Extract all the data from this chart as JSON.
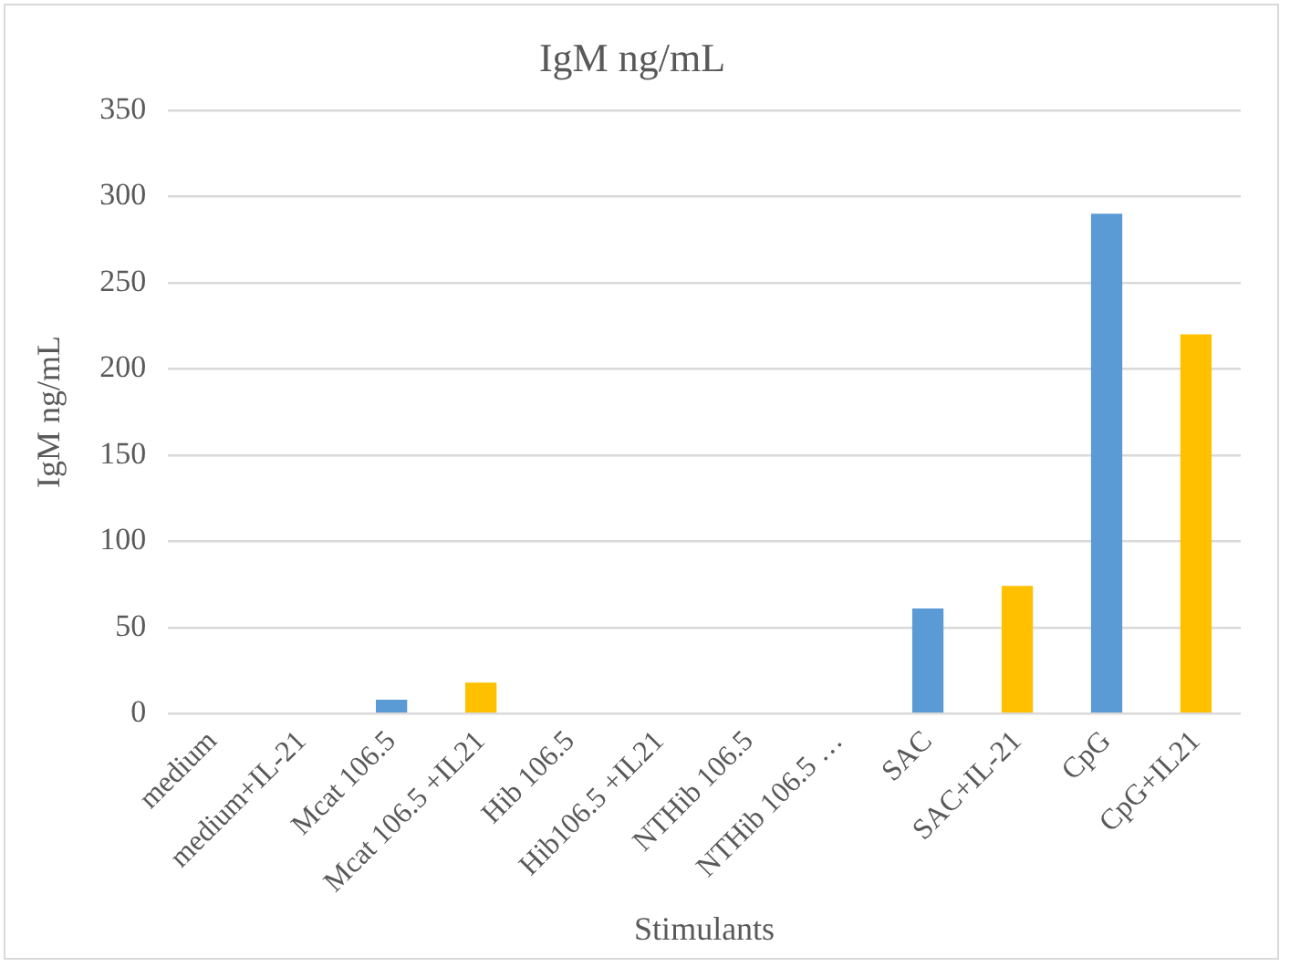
{
  "chart_data": {
    "type": "bar",
    "title": "IgM ng/mL",
    "xlabel": "Stimulants",
    "ylabel": "IgM ng/mL",
    "categories": [
      "medium",
      "medium+IL-21",
      "Mcat 106.5",
      "Mcat 106.5 +IL21",
      "Hib 106.5",
      "Hib106.5 +IL21",
      "NTHib 106.5",
      "NTHib 106.5 …",
      "SAC",
      "SAC+IL-21",
      "CpG",
      "CpG+IL21"
    ],
    "values": [
      0,
      0,
      8,
      18,
      0,
      0,
      0,
      0,
      61,
      74,
      290,
      220
    ],
    "colors": [
      "#5b9bd5",
      "#ffc000",
      "#5b9bd5",
      "#ffc000",
      "#5b9bd5",
      "#ffc000",
      "#5b9bd5",
      "#ffc000",
      "#5b9bd5",
      "#ffc000",
      "#5b9bd5",
      "#ffc000"
    ],
    "ylim": [
      0,
      350
    ],
    "yticks": [
      0,
      50,
      100,
      150,
      200,
      250,
      300,
      350
    ],
    "grid": "y",
    "legend": false
  }
}
